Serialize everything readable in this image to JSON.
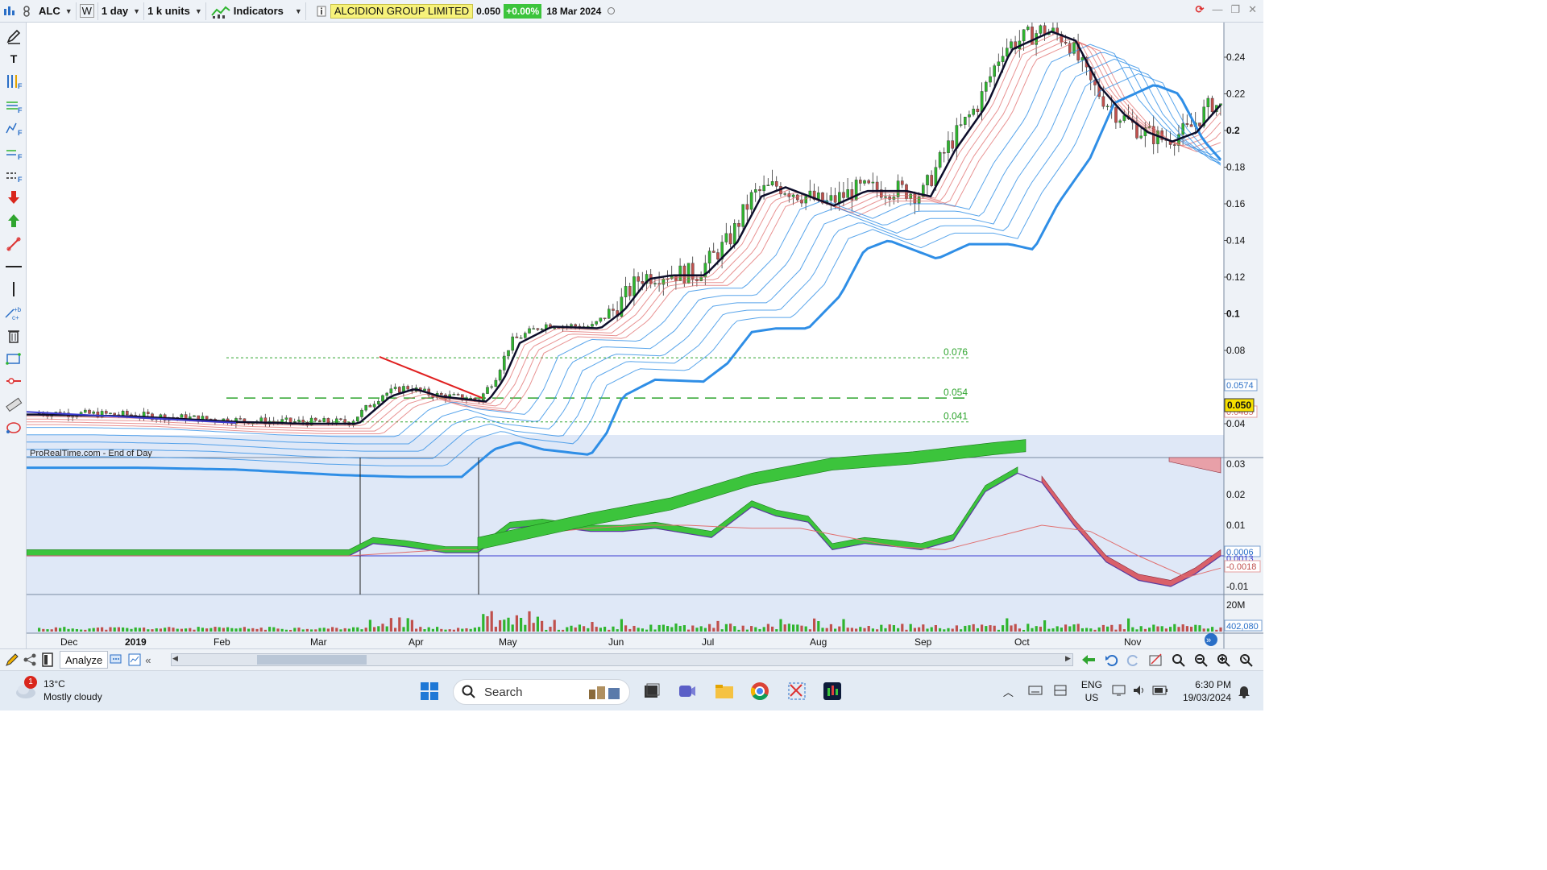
{
  "toolbar": {
    "symbol": "ALC",
    "w_label": "W",
    "timeframe": "1 day",
    "units": "1 k units",
    "indicators_label": "Indicators",
    "instrument_name": "ALCIDION GROUP LIMITED",
    "price": "0.050",
    "change": "+0.00%",
    "date": "18 Mar 2024"
  },
  "chart": {
    "source_label": "ProRealTime.com - End of Day",
    "price_axis_labels": [
      "0.24",
      "0.22",
      "0.2",
      "0.18",
      "0.16",
      "0.14",
      "0.12",
      "0.1",
      "0.08",
      "0.04"
    ],
    "price_tags": {
      "upper": "0.0574",
      "current": "0.050",
      "lower": "0.0485"
    },
    "hlines": [
      {
        "label": "0.076",
        "value": 0.076
      },
      {
        "label": "0.054",
        "value": 0.054
      },
      {
        "label": "0.041",
        "value": 0.041
      }
    ],
    "osc_axis_labels": [
      "0.03",
      "0.02",
      "0.01",
      "-0.01"
    ],
    "osc_tags": {
      "a": "0.0006",
      "b": "0.0013",
      "current": "-0.0018"
    },
    "volume_axis_label": "20M",
    "volume_tag": "402,080",
    "months": [
      "Dec",
      "2019",
      "Feb",
      "Mar",
      "Apr",
      "May",
      "Jun",
      "Jul",
      "Aug",
      "Sep",
      "Oct",
      "Nov"
    ],
    "colors": {
      "up": "#2fb52f",
      "down": "#c0504d",
      "ema_fast": "#e06d6d",
      "ema_slow": "#2f8ee6",
      "trend_red": "#e02020",
      "trend_blue": "#3b3bd0"
    }
  },
  "chart_data": {
    "type": "candlestick",
    "title": "ALCIDION GROUP LIMITED",
    "ylim": [
      0.035,
      0.26
    ],
    "x": [
      "Dec",
      "2019",
      "Feb",
      "Mar",
      "Apr",
      "May",
      "Jun",
      "Jul",
      "Aug",
      "Sep",
      "Oct",
      "Nov"
    ],
    "close_approx": [
      0.046,
      0.045,
      0.042,
      0.042,
      0.06,
      0.09,
      0.125,
      0.165,
      0.16,
      0.17,
      0.245,
      0.205
    ],
    "reference_lines": [
      0.076,
      0.054,
      0.041
    ]
  },
  "navbar": {
    "analyze_label": "Analyze"
  },
  "taskbar": {
    "weather_temp": "13°C",
    "weather_desc": "Mostly cloudy",
    "weather_badge": "1",
    "search_placeholder": "Search",
    "lang_top": "ENG",
    "lang_bottom": "US",
    "time": "6:30 PM",
    "date": "19/03/2024"
  }
}
